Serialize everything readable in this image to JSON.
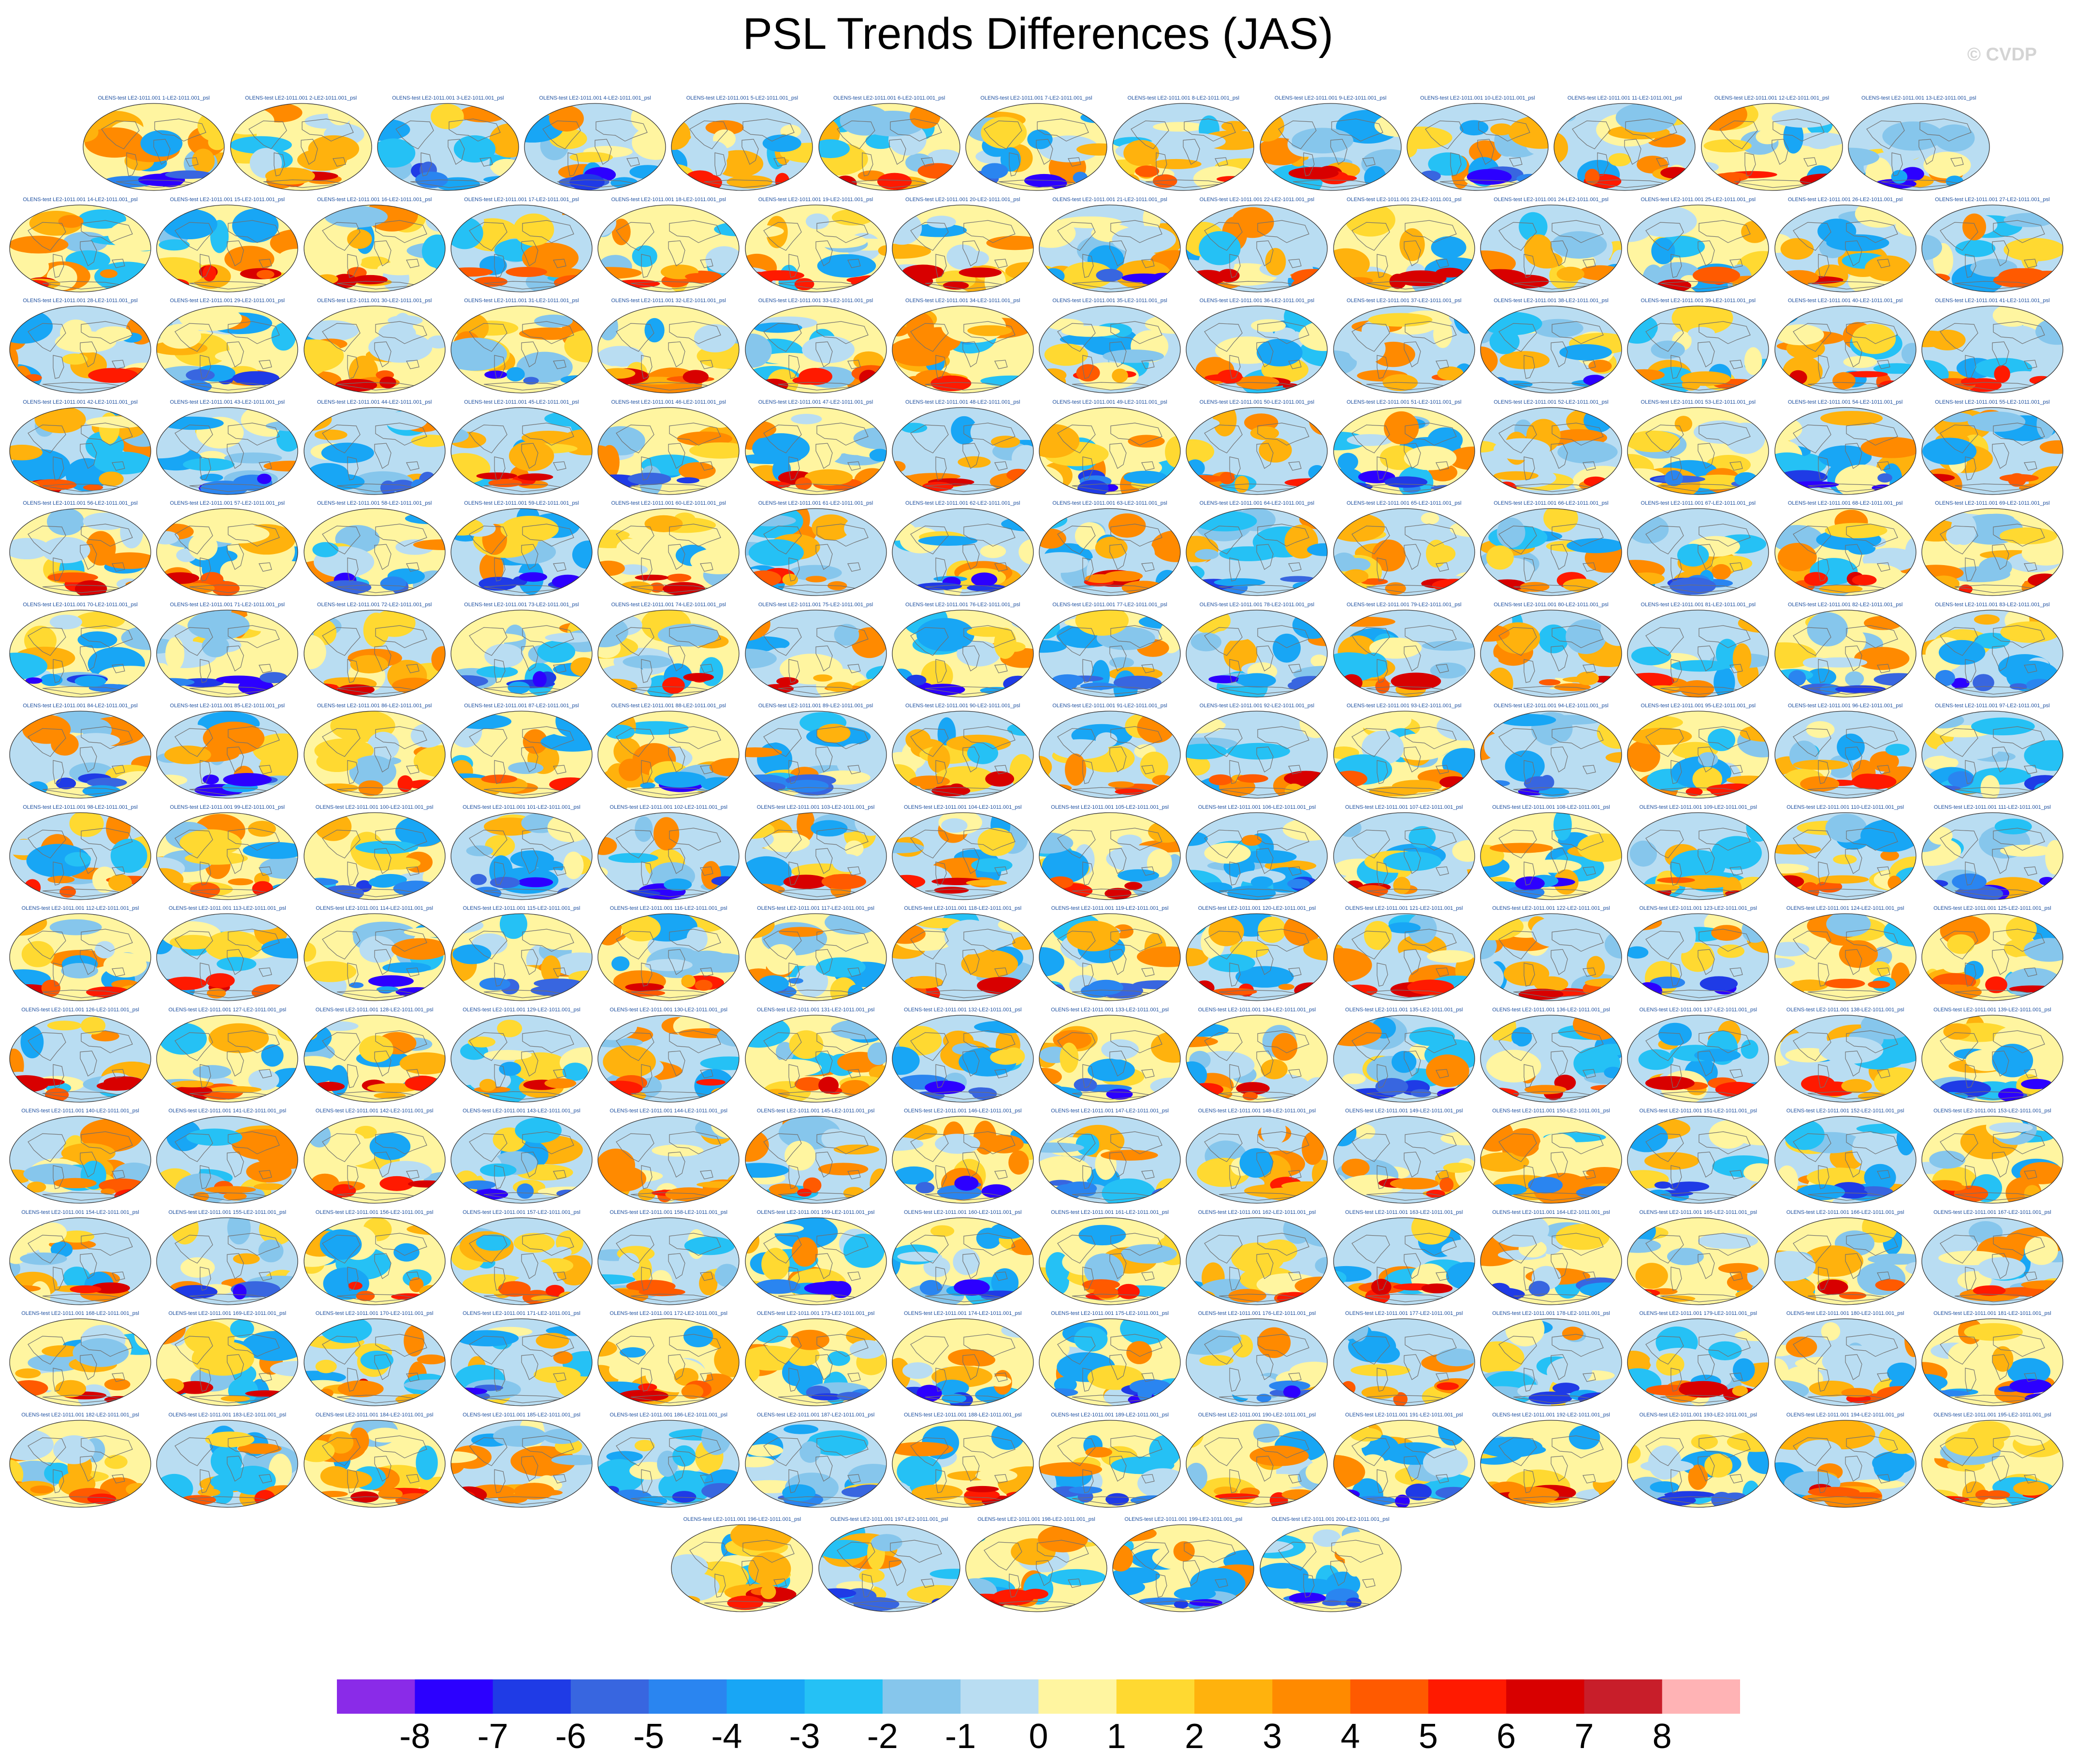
{
  "header": {
    "title": "PSL Trends Differences (JAS)",
    "watermark": "© CVDP"
  },
  "chart_data": {
    "type": "heatmap",
    "title": "PSL Trends Differences (JAS)",
    "layout_rows": [
      13,
      14,
      14,
      14,
      14,
      14,
      14,
      14,
      14,
      14,
      14,
      14,
      14,
      14,
      5
    ],
    "panel_titles": [
      "OLENS-test LE2-1011.001 1-LE2-1011.001_psl",
      "OLENS-test LE2-1011.001 2-LE2-1011.001_psl",
      "OLENS-test LE2-1011.001 3-LE2-1011.001_psl",
      "OLENS-test LE2-1011.001 4-LE2-1011.001_psl",
      "OLENS-test LE2-1011.001 5-LE2-1011.001_psl",
      "OLENS-test LE2-1011.001 6-LE2-1011.001_psl",
      "OLENS-test LE2-1011.001 7-LE2-1011.001_psl",
      "OLENS-test LE2-1011.001 8-LE2-1011.001_psl",
      "OLENS-test LE2-1011.001 9-LE2-1011.001_psl",
      "OLENS-test LE2-1011.001 10-LE2-1011.001_psl",
      "OLENS-test LE2-1011.001 11-LE2-1011.001_psl",
      "OLENS-test LE2-1011.001 12-LE2-1011.001_psl",
      "OLENS-test LE2-1011.001 13-LE2-1011.001_psl",
      "OLENS-test LE2-1011.001 14-LE2-1011.001_psl",
      "OLENS-test LE2-1011.001 15-LE2-1011.001_psl",
      "OLENS-test LE2-1011.001 16-LE2-1011.001_psl",
      "OLENS-test LE2-1011.001 17-LE2-1011.001_psl",
      "OLENS-test LE2-1011.001 18-LE2-1011.001_psl",
      "OLENS-test LE2-1011.001 19-LE2-1011.001_psl",
      "OLENS-test LE2-1011.001 20-LE2-1011.001_psl",
      "OLENS-test LE2-1011.001 21-LE2-1011.001_psl",
      "OLENS-test LE2-1011.001 22-LE2-1011.001_psl",
      "OLENS-test LE2-1011.001 23-LE2-1011.001_psl",
      "OLENS-test LE2-1011.001 24-LE2-1011.001_psl",
      "OLENS-test LE2-1011.001 25-LE2-1011.001_psl",
      "OLENS-test LE2-1011.001 26-LE2-1011.001_psl",
      "OLENS-test LE2-1011.001 27-LE2-1011.001_psl",
      "OLENS-test LE2-1011.001 28-LE2-1011.001_psl",
      "OLENS-test LE2-1011.001 29-LE2-1011.001_psl",
      "OLENS-test LE2-1011.001 30-LE2-1011.001_psl",
      "OLENS-test LE2-1011.001 31-LE2-1011.001_psl",
      "OLENS-test LE2-1011.001 32-LE2-1011.001_psl",
      "OLENS-test LE2-1011.001 33-LE2-1011.001_psl",
      "OLENS-test LE2-1011.001 34-LE2-1011.001_psl",
      "OLENS-test LE2-1011.001 35-LE2-1011.001_psl",
      "OLENS-test LE2-1011.001 36-LE2-1011.001_psl",
      "OLENS-test LE2-1011.001 37-LE2-1011.001_psl",
      "OLENS-test LE2-1011.001 38-LE2-1011.001_psl",
      "OLENS-test LE2-1011.001 39-LE2-1011.001_psl",
      "OLENS-test LE2-1011.001 40-LE2-1011.001_psl",
      "OLENS-test LE2-1011.001 41-LE2-1011.001_psl",
      "OLENS-test LE2-1011.001 42-LE2-1011.001_psl",
      "OLENS-test LE2-1011.001 43-LE2-1011.001_psl",
      "OLENS-test LE2-1011.001 44-LE2-1011.001_psl",
      "OLENS-test LE2-1011.001 45-LE2-1011.001_psl",
      "OLENS-test LE2-1011.001 46-LE2-1011.001_psl",
      "OLENS-test LE2-1011.001 47-LE2-1011.001_psl",
      "OLENS-test LE2-1011.001 48-LE2-1011.001_psl",
      "OLENS-test LE2-1011.001 49-LE2-1011.001_psl",
      "OLENS-test LE2-1011.001 50-LE2-1011.001_psl",
      "OLENS-test LE2-1011.001 51-LE2-1011.001_psl",
      "OLENS-test LE2-1011.001 52-LE2-1011.001_psl",
      "OLENS-test LE2-1011.001 53-LE2-1011.001_psl",
      "OLENS-test LE2-1011.001 54-LE2-1011.001_psl",
      "OLENS-test LE2-1011.001 55-LE2-1011.001_psl",
      "OLENS-test LE2-1011.001 56-LE2-1011.001_psl",
      "OLENS-test LE2-1011.001 57-LE2-1011.001_psl",
      "OLENS-test LE2-1011.001 58-LE2-1011.001_psl",
      "OLENS-test LE2-1011.001 59-LE2-1011.001_psl",
      "OLENS-test LE2-1011.001 60-LE2-1011.001_psl",
      "OLENS-test LE2-1011.001 61-LE2-1011.001_psl",
      "OLENS-test LE2-1011.001 62-LE2-1011.001_psl",
      "OLENS-test LE2-1011.001 63-LE2-1011.001_psl",
      "OLENS-test LE2-1011.001 64-LE2-1011.001_psl",
      "OLENS-test LE2-1011.001 65-LE2-1011.001_psl",
      "OLENS-test LE2-1011.001 66-LE2-1011.001_psl",
      "OLENS-test LE2-1011.001 67-LE2-1011.001_psl",
      "OLENS-test LE2-1011.001 68-LE2-1011.001_psl",
      "OLENS-test LE2-1011.001 69-LE2-1011.001_psl",
      "OLENS-test LE2-1011.001 70-LE2-1011.001_psl",
      "OLENS-test LE2-1011.001 71-LE2-1011.001_psl",
      "OLENS-test LE2-1011.001 72-LE2-1011.001_psl",
      "OLENS-test LE2-1011.001 73-LE2-1011.001_psl",
      "OLENS-test LE2-1011.001 74-LE2-1011.001_psl",
      "OLENS-test LE2-1011.001 75-LE2-1011.001_psl",
      "OLENS-test LE2-1011.001 76-LE2-1011.001_psl",
      "OLENS-test LE2-1011.001 77-LE2-1011.001_psl",
      "OLENS-test LE2-1011.001 78-LE2-1011.001_psl",
      "OLENS-test LE2-1011.001 79-LE2-1011.001_psl",
      "OLENS-test LE2-1011.001 80-LE2-1011.001_psl",
      "OLENS-test LE2-1011.001 81-LE2-1011.001_psl",
      "OLENS-test LE2-1011.001 82-LE2-1011.001_psl",
      "OLENS-test LE2-1011.001 83-LE2-1011.001_psl",
      "OLENS-test LE2-1011.001 84-LE2-1011.001_psl",
      "OLENS-test LE2-1011.001 85-LE2-1011.001_psl",
      "OLENS-test LE2-1011.001 86-LE2-1011.001_psl",
      "OLENS-test LE2-1011.001 87-LE2-1011.001_psl",
      "OLENS-test LE2-1011.001 88-LE2-1011.001_psl",
      "OLENS-test LE2-1011.001 89-LE2-1011.001_psl",
      "OLENS-test LE2-1011.001 90-LE2-1011.001_psl",
      "OLENS-test LE2-1011.001 91-LE2-1011.001_psl",
      "OLENS-test LE2-1011.001 92-LE2-1011.001_psl",
      "OLENS-test LE2-1011.001 93-LE2-1011.001_psl",
      "OLENS-test LE2-1011.001 94-LE2-1011.001_psl",
      "OLENS-test LE2-1011.001 95-LE2-1011.001_psl",
      "OLENS-test LE2-1011.001 96-LE2-1011.001_psl",
      "OLENS-test LE2-1011.001 97-LE2-1011.001_psl",
      "OLENS-test LE2-1011.001 98-LE2-1011.001_psl",
      "OLENS-test LE2-1011.001 99-LE2-1011.001_psl",
      "OLENS-test LE2-1011.001 100-LE2-1011.001_psl",
      "OLENS-test LE2-1011.001 101-LE2-1011.001_psl",
      "OLENS-test LE2-1011.001 102-LE2-1011.001_psl",
      "OLENS-test LE2-1011.001 103-LE2-1011.001_psl",
      "OLENS-test LE2-1011.001 104-LE2-1011.001_psl",
      "OLENS-test LE2-1011.001 105-LE2-1011.001_psl",
      "OLENS-test LE2-1011.001 106-LE2-1011.001_psl",
      "OLENS-test LE2-1011.001 107-LE2-1011.001_psl",
      "OLENS-test LE2-1011.001 108-LE2-1011.001_psl",
      "OLENS-test LE2-1011.001 109-LE2-1011.001_psl",
      "OLENS-test LE2-1011.001 110-LE2-1011.001_psl",
      "OLENS-test LE2-1011.001 111-LE2-1011.001_psl",
      "OLENS-test LE2-1011.001 112-LE2-1011.001_psl",
      "OLENS-test LE2-1011.001 113-LE2-1011.001_psl",
      "OLENS-test LE2-1011.001 114-LE2-1011.001_psl",
      "OLENS-test LE2-1011.001 115-LE2-1011.001_psl",
      "OLENS-test LE2-1011.001 116-LE2-1011.001_psl",
      "OLENS-test LE2-1011.001 117-LE2-1011.001_psl",
      "OLENS-test LE2-1011.001 118-LE2-1011.001_psl",
      "OLENS-test LE2-1011.001 119-LE2-1011.001_psl",
      "OLENS-test LE2-1011.001 120-LE2-1011.001_psl",
      "OLENS-test LE2-1011.001 121-LE2-1011.001_psl",
      "OLENS-test LE2-1011.001 122-LE2-1011.001_psl",
      "OLENS-test LE2-1011.001 123-LE2-1011.001_psl",
      "OLENS-test LE2-1011.001 124-LE2-1011.001_psl",
      "OLENS-test LE2-1011.001 125-LE2-1011.001_psl",
      "OLENS-test LE2-1011.001 126-LE2-1011.001_psl",
      "OLENS-test LE2-1011.001 127-LE2-1011.001_psl",
      "OLENS-test LE2-1011.001 128-LE2-1011.001_psl",
      "OLENS-test LE2-1011.001 129-LE2-1011.001_psl",
      "OLENS-test LE2-1011.001 130-LE2-1011.001_psl",
      "OLENS-test LE2-1011.001 131-LE2-1011.001_psl",
      "OLENS-test LE2-1011.001 132-LE2-1011.001_psl",
      "OLENS-test LE2-1011.001 133-LE2-1011.001_psl",
      "OLENS-test LE2-1011.001 134-LE2-1011.001_psl",
      "OLENS-test LE2-1011.001 135-LE2-1011.001_psl",
      "OLENS-test LE2-1011.001 136-LE2-1011.001_psl",
      "OLENS-test LE2-1011.001 137-LE2-1011.001_psl",
      "OLENS-test LE2-1011.001 138-LE2-1011.001_psl",
      "OLENS-test LE2-1011.001 139-LE2-1011.001_psl",
      "OLENS-test LE2-1011.001 140-LE2-1011.001_psl",
      "OLENS-test LE2-1011.001 141-LE2-1011.001_psl",
      "OLENS-test LE2-1011.001 142-LE2-1011.001_psl",
      "OLENS-test LE2-1011.001 143-LE2-1011.001_psl",
      "OLENS-test LE2-1011.001 144-LE2-1011.001_psl",
      "OLENS-test LE2-1011.001 145-LE2-1011.001_psl",
      "OLENS-test LE2-1011.001 146-LE2-1011.001_psl",
      "OLENS-test LE2-1011.001 147-LE2-1011.001_psl",
      "OLENS-test LE2-1011.001 148-LE2-1011.001_psl",
      "OLENS-test LE2-1011.001 149-LE2-1011.001_psl",
      "OLENS-test LE2-1011.001 150-LE2-1011.001_psl",
      "OLENS-test LE2-1011.001 151-LE2-1011.001_psl",
      "OLENS-test LE2-1011.001 152-LE2-1011.001_psl",
      "OLENS-test LE2-1011.001 153-LE2-1011.001_psl",
      "OLENS-test LE2-1011.001 154-LE2-1011.001_psl",
      "OLENS-test LE2-1011.001 155-LE2-1011.001_psl",
      "OLENS-test LE2-1011.001 156-LE2-1011.001_psl",
      "OLENS-test LE2-1011.001 157-LE2-1011.001_psl",
      "OLENS-test LE2-1011.001 158-LE2-1011.001_psl",
      "OLENS-test LE2-1011.001 159-LE2-1011.001_psl",
      "OLENS-test LE2-1011.001 160-LE2-1011.001_psl",
      "OLENS-test LE2-1011.001 161-LE2-1011.001_psl",
      "OLENS-test LE2-1011.001 162-LE2-1011.001_psl",
      "OLENS-test LE2-1011.001 163-LE2-1011.001_psl",
      "OLENS-test LE2-1011.001 164-LE2-1011.001_psl",
      "OLENS-test LE2-1011.001 165-LE2-1011.001_psl",
      "OLENS-test LE2-1011.001 166-LE2-1011.001_psl",
      "OLENS-test LE2-1011.001 167-LE2-1011.001_psl",
      "OLENS-test LE2-1011.001 168-LE2-1011.001_psl",
      "OLENS-test LE2-1011.001 169-LE2-1011.001_psl",
      "OLENS-test LE2-1011.001 170-LE2-1011.001_psl",
      "OLENS-test LE2-1011.001 171-LE2-1011.001_psl",
      "OLENS-test LE2-1011.001 172-LE2-1011.001_psl",
      "OLENS-test LE2-1011.001 173-LE2-1011.001_psl",
      "OLENS-test LE2-1011.001 174-LE2-1011.001_psl",
      "OLENS-test LE2-1011.001 175-LE2-1011.001_psl",
      "OLENS-test LE2-1011.001 176-LE2-1011.001_psl",
      "OLENS-test LE2-1011.001 177-LE2-1011.001_psl",
      "OLENS-test LE2-1011.001 178-LE2-1011.001_psl",
      "OLENS-test LE2-1011.001 179-LE2-1011.001_psl",
      "OLENS-test LE2-1011.001 180-LE2-1011.001_psl",
      "OLENS-test LE2-1011.001 181-LE2-1011.001_psl",
      "OLENS-test LE2-1011.001 182-LE2-1011.001_psl",
      "OLENS-test LE2-1011.001 183-LE2-1011.001_psl",
      "OLENS-test LE2-1011.001 184-LE2-1011.001_psl",
      "OLENS-test LE2-1011.001 185-LE2-1011.001_psl",
      "OLENS-test LE2-1011.001 186-LE2-1011.001_psl",
      "OLENS-test LE2-1011.001 187-LE2-1011.001_psl",
      "OLENS-test LE2-1011.001 188-LE2-1011.001_psl",
      "OLENS-test LE2-1011.001 189-LE2-1011.001_psl",
      "OLENS-test LE2-1011.001 190-LE2-1011.001_psl",
      "OLENS-test LE2-1011.001 191-LE2-1011.001_psl",
      "OLENS-test LE2-1011.001 192-LE2-1011.001_psl",
      "OLENS-test LE2-1011.001 193-LE2-1011.001_psl",
      "OLENS-test LE2-1011.001 194-LE2-1011.001_psl",
      "OLENS-test LE2-1011.001 195-LE2-1011.001_psl",
      "OLENS-test LE2-1011.001 196-LE2-1011.001_psl",
      "OLENS-test LE2-1011.001 197-LE2-1011.001_psl",
      "OLENS-test LE2-1011.001 198-LE2-1011.001_psl",
      "OLENS-test LE2-1011.001 199-LE2-1011.001_psl",
      "OLENS-test LE2-1011.001 200-LE2-1011.001_psl"
    ],
    "colorbar": {
      "levels": [
        -8,
        -7,
        -6,
        -5,
        -4,
        -3,
        -2,
        -1,
        0,
        1,
        2,
        3,
        4,
        5,
        6,
        7,
        8
      ],
      "tick_labels": [
        "-8",
        "-7",
        "-6",
        "-5",
        "-4",
        "-3",
        "-2",
        "-1",
        "0",
        "1",
        "2",
        "3",
        "4",
        "5",
        "6",
        "7",
        "8"
      ],
      "colors": [
        "#8a2be8",
        "#2c00ff",
        "#1f3be6",
        "#3866e0",
        "#2a85f0",
        "#18a6f5",
        "#25c1f5",
        "#86c6ec",
        "#b9ddf2",
        "#fff5a0",
        "#ffd931",
        "#ffb20d",
        "#ff8a00",
        "#ff5a00",
        "#ff1a00",
        "#d80000",
        "#c81e2a",
        "#ffb3b5"
      ]
    },
    "land_contour_color": "#707070"
  }
}
